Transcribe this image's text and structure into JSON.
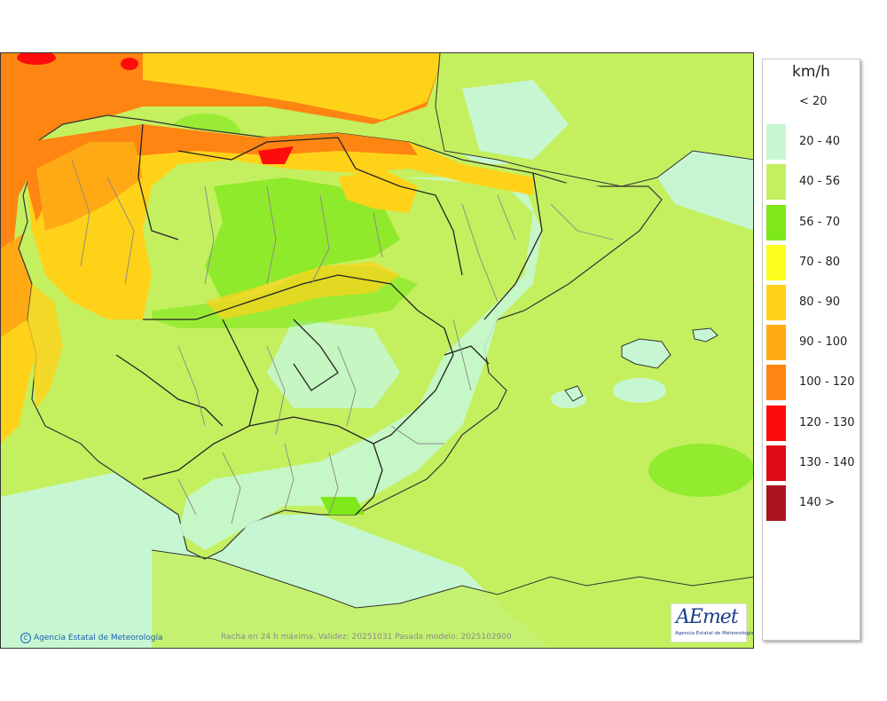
{
  "map": {
    "footer_text": "Racha en 24 h máxima. Validez: 20251031 Pasada modelo: 2025102900",
    "copyright": "Agencia Estatal de Meteorología",
    "logo": {
      "mark": "AEmet",
      "subtitle": "Agencia Estatal de Meteorología",
      "color": "#1a3f8c"
    }
  },
  "legend": {
    "unit": "km/h",
    "items": [
      {
        "label": "< 20",
        "color": "#ffffff"
      },
      {
        "label": "20 - 40",
        "color": "#c7f7d2"
      },
      {
        "label": "40 - 56",
        "color": "#c4f060"
      },
      {
        "label": "56 - 70",
        "color": "#7ee81a"
      },
      {
        "label": "70 - 80",
        "color": "#fefe1e"
      },
      {
        "label": "80 - 90",
        "color": "#ffd21a"
      },
      {
        "label": "90 - 100",
        "color": "#ffaa14"
      },
      {
        "label": "100 - 120",
        "color": "#fe8512"
      },
      {
        "label": "120 - 130",
        "color": "#fe0c0c"
      },
      {
        "label": "130 - 140",
        "color": "#e00a14"
      },
      {
        "label": "140 >",
        "color": "#aa1420"
      }
    ]
  }
}
